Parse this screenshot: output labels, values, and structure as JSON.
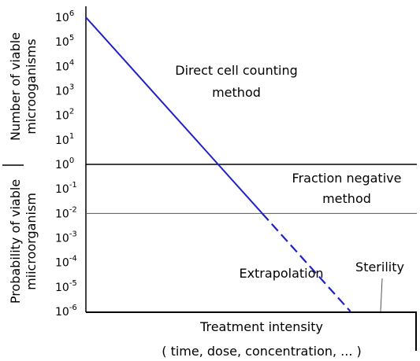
{
  "chart_data": {
    "type": "line",
    "title": "",
    "xlabel": "Treatment intensity",
    "xlabel_sub": "( time, dose, concentration, ... )",
    "ylabel_upper": [
      "Number of viable",
      "microoganisms"
    ],
    "ylabel_lower": [
      "Probability of viable",
      "miicroorganism"
    ],
    "y_scale": "log",
    "y_exponents": [
      6,
      5,
      4,
      3,
      2,
      1,
      0,
      -1,
      -2,
      -3,
      -4,
      -5,
      -6
    ],
    "tick_labels": [
      {
        "base": "10",
        "exp": "6"
      },
      {
        "base": "10",
        "exp": "5"
      },
      {
        "base": "10",
        "exp": "4"
      },
      {
        "base": "10",
        "exp": "3"
      },
      {
        "base": "10",
        "exp": "2"
      },
      {
        "base": "10",
        "exp": "1"
      },
      {
        "base": "10",
        "exp": "0"
      },
      {
        "base": "10",
        "exp": "-1"
      },
      {
        "base": "10",
        "exp": "-2"
      },
      {
        "base": "10",
        "exp": "-3"
      },
      {
        "base": "10",
        "exp": "-4"
      },
      {
        "base": "10",
        "exp": "-5"
      },
      {
        "base": "10",
        "exp": "-6"
      }
    ],
    "ylim_exponents": [
      -6,
      6
    ],
    "reference_lines": [
      0,
      -2
    ],
    "series": [
      {
        "style": "solid",
        "color": "#1f1fd0",
        "points": [
          {
            "x": 0,
            "y_exp": 6
          },
          {
            "x": 0.6,
            "y_exp": -2
          }
        ]
      },
      {
        "style": "dashed",
        "color": "#1f1fd0",
        "points": [
          {
            "x": 0.6,
            "y_exp": -2
          },
          {
            "x": 0.9,
            "y_exp": -6
          }
        ]
      }
    ],
    "annotations": {
      "direct_counting": [
        "Direct cell counting",
        "method"
      ],
      "fraction_negative": [
        "Fraction negative",
        "method"
      ],
      "extrapolation": "Extrapolation",
      "sterility": "Sterility"
    },
    "colors": {
      "line": "#1f1fd0",
      "axis": "#000000",
      "reference": "#555555"
    }
  }
}
